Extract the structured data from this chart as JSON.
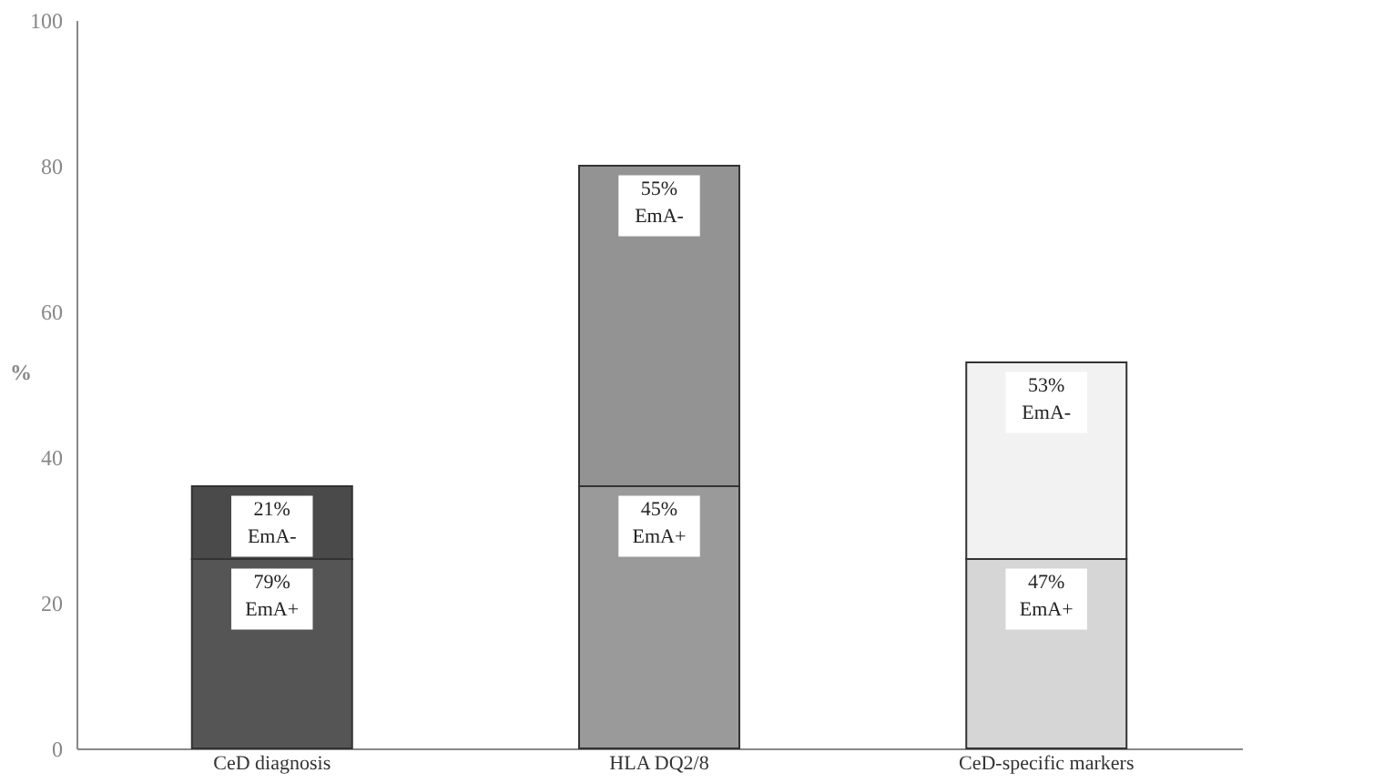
{
  "chart_data": {
    "type": "bar",
    "stacked": true,
    "ylabel": "%",
    "categories": [
      "CeD diagnosis",
      "HLA DQ2/8",
      "CeD-specific markers"
    ],
    "series": [
      {
        "colors": [
          "#555555",
          "#9a9a9a",
          "#d6d6d6"
        ],
        "values": [
          26,
          36,
          26
        ]
      },
      {
        "colors": [
          "#4a4a4a",
          "#939393",
          "#f2f2f2"
        ],
        "values": [
          10,
          44,
          27
        ]
      }
    ],
    "annotations": [
      {
        "text": "79%\nEmA+",
        "x": "CeD diagnosis",
        "y": 26
      },
      {
        "text": "45%\nEmA+",
        "x": "HLA DQ2/8",
        "y": 36
      },
      {
        "text": "47%\nEmA+",
        "x": "CeD-specific markers",
        "y": 26
      },
      {
        "text": "21%\nEmA-",
        "x": "CeD diagnosis",
        "y": 36
      },
      {
        "text": "55%\nEmA-",
        "x": "HLA DQ2/8",
        "y": 80
      },
      {
        "text": "53%\nEmA-",
        "x": "CeD-specific markers",
        "y": 53
      }
    ],
    "ylim": [
      0,
      100
    ],
    "yticks": [
      0,
      20,
      40,
      60,
      80,
      100
    ],
    "grid": false
  }
}
